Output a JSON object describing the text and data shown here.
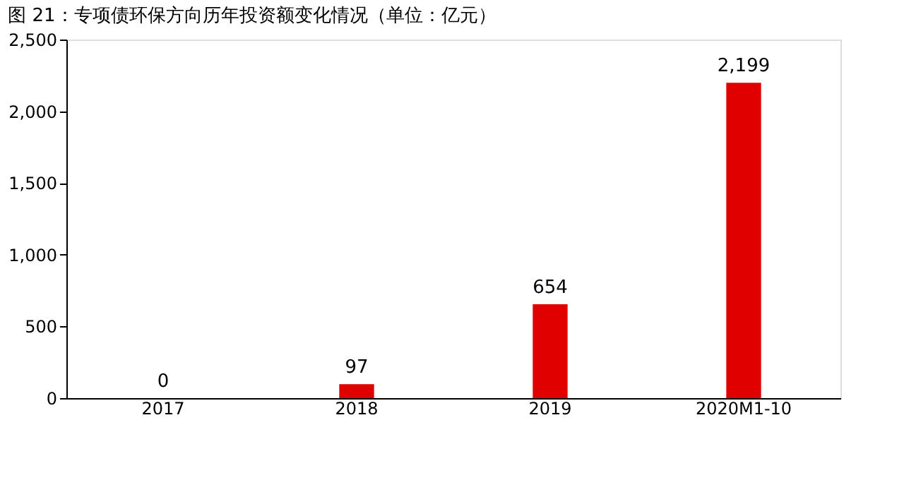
{
  "chart_data": {
    "type": "bar",
    "title": "图 21：专项债环保方向历年投资额变化情况（单位：亿元）",
    "categories": [
      "2017",
      "2018",
      "2019",
      "2020M1-10"
    ],
    "values": [
      0,
      97,
      654,
      2199
    ],
    "value_labels": [
      "0",
      "97",
      "654",
      "2,199"
    ],
    "color": "#e00000",
    "ylim": [
      0,
      2500
    ],
    "yticks": [
      {
        "value": 0,
        "label": "0"
      },
      {
        "value": 500,
        "label": "500"
      },
      {
        "value": 1000,
        "label": "1,000"
      },
      {
        "value": 1500,
        "label": "1,500"
      },
      {
        "value": 2000,
        "label": "2,000"
      },
      {
        "value": 2500,
        "label": "2,500"
      }
    ],
    "grid": false
  }
}
